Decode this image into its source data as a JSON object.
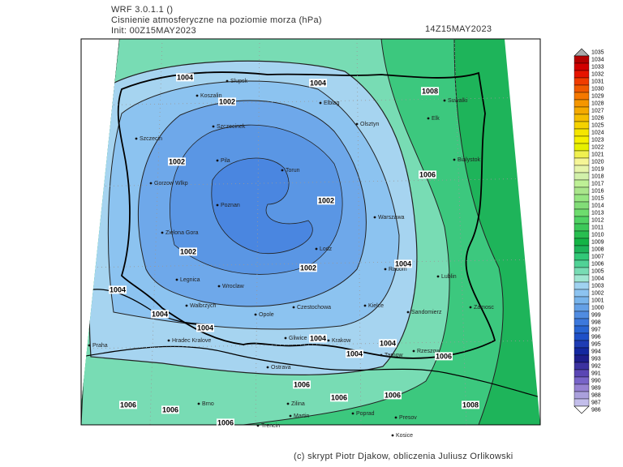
{
  "header": {
    "model": "WRF 3.0.1.1 ()",
    "title": "Cisnienie atmosferyczne na poziomie morza (hPa)",
    "init": "Init: 00Z15MAY2023",
    "valid": "14Z15MAY2023"
  },
  "map": {
    "cities": [
      "Slupsk",
      "Koszalin",
      "Elblag",
      "Olsztyn",
      "Elk",
      "Suwalki",
      "Szczecin",
      "Szczecinek",
      "Pila",
      "Torun",
      "Bialystok",
      "Gorzow Wlkp",
      "Poznan",
      "Warszawa",
      "Zielona Gora",
      "Lodz",
      "Radom",
      "Lublin",
      "Legnica",
      "Wroclaw",
      "Walbrzych",
      "Opole",
      "Czestochowa",
      "Kielce",
      "Sandomierz",
      "Zamosc",
      "Praha",
      "Hradec Kralove",
      "Gliwice",
      "Krakow",
      "Tarnow",
      "Rzeszow",
      "Ostrava",
      "Brno",
      "Zilina",
      "Martin",
      "Poprad",
      "Presov",
      "Kosice",
      "Trencin"
    ],
    "contour_labels": [
      1004,
      1004,
      1008,
      1002,
      1002,
      1006,
      1002,
      1002,
      1004,
      1002,
      1004,
      1004,
      1004,
      1004,
      1004,
      1004,
      1006,
      1006,
      1006,
      1006,
      1006,
      1006,
      1008,
      1006
    ]
  },
  "colorbar": {
    "levels": [
      1035,
      1034,
      1033,
      1032,
      1031,
      1030,
      1029,
      1028,
      1027,
      1026,
      1025,
      1024,
      1023,
      1022,
      1021,
      1020,
      1019,
      1018,
      1017,
      1016,
      1015,
      1014,
      1013,
      1012,
      1011,
      1010,
      1009,
      1008,
      1007,
      1006,
      1005,
      1004,
      1003,
      1002,
      1001,
      1000,
      999,
      998,
      997,
      996,
      995,
      994,
      993,
      992,
      991,
      990,
      989,
      988,
      987,
      986
    ],
    "colors": [
      "#aaaaaa",
      "#b40000",
      "#d20000",
      "#e61400",
      "#f03c00",
      "#f05a00",
      "#f57800",
      "#f59600",
      "#f5aa00",
      "#f5be00",
      "#f5d200",
      "#f5e600",
      "#f5f000",
      "#e6f000",
      "#f0f050",
      "#f5f596",
      "#e6f5aa",
      "#d2f0aa",
      "#bef096",
      "#aae68c",
      "#96e682",
      "#82dc78",
      "#6edc6e",
      "#50d264",
      "#3cc85a",
      "#28be50",
      "#14b446",
      "#1eb45a",
      "#32c878",
      "#50d296",
      "#78dcb4",
      "#a0e6d2",
      "#a0d2f0",
      "#8cc3f0",
      "#78b4eb",
      "#64a0e6",
      "#508ce1",
      "#3c78dc",
      "#2864d2",
      "#1e50c8",
      "#1e3cb4",
      "#1428a0",
      "#1e1e8c",
      "#3c32a0",
      "#5a46b4",
      "#7864c8",
      "#9682d2",
      "#aaa0dc",
      "#c3beeb",
      "#ffffff"
    ]
  },
  "footer": "(c) skrypt Piotr Djakow, obliczenia Juliusz Orlikowski"
}
